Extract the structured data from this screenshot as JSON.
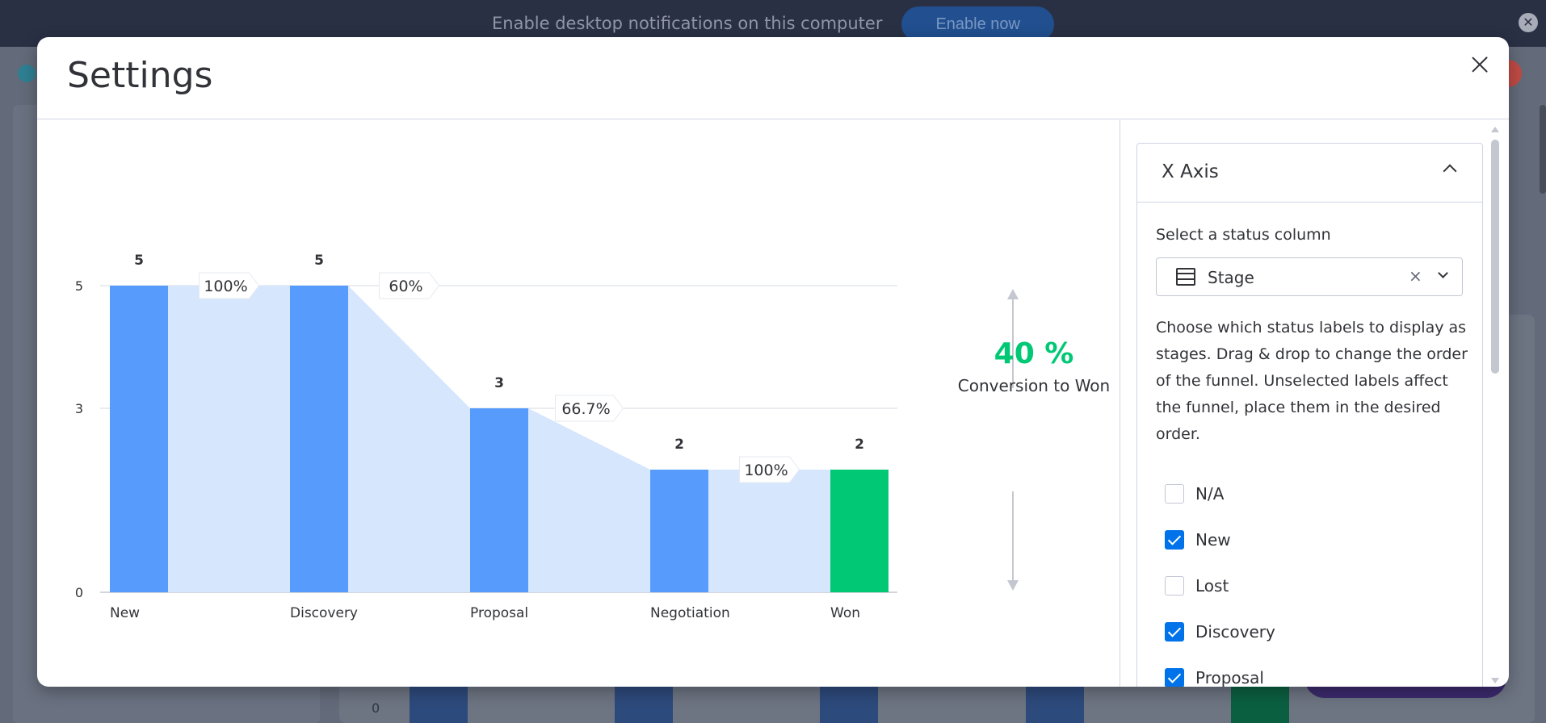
{
  "notification": {
    "text": "Enable desktop notifications on this computer",
    "button": "Enable now",
    "close": "✕"
  },
  "background": {
    "axis_zero": "0"
  },
  "modal": {
    "title": "Settings",
    "conversion": {
      "value": "40 %",
      "label": "Conversion to Won"
    }
  },
  "settings_panel": {
    "section_title": "X Axis",
    "status_field_label": "Select a status column",
    "status_select_value": "Stage",
    "clear_symbol": "×",
    "description": "Choose which status labels to display as stages. Drag & drop to change the order of the funnel. Unselected labels affect the funnel, place them in the desired order.",
    "labels": [
      {
        "label": "N/A",
        "checked": false
      },
      {
        "label": "New",
        "checked": true
      },
      {
        "label": "Lost",
        "checked": false
      },
      {
        "label": "Discovery",
        "checked": true
      },
      {
        "label": "Proposal",
        "checked": true
      }
    ]
  },
  "chart_data": {
    "type": "bar",
    "categories": [
      "New",
      "Discovery",
      "Proposal",
      "Negotiation",
      "Won"
    ],
    "values": [
      5,
      5,
      3,
      2,
      2
    ],
    "data_labels": [
      "5",
      "5",
      "3",
      "2",
      "2"
    ],
    "conversion_rates": [
      "100%",
      "60%",
      "66.7%",
      "100%"
    ],
    "y_ticks": [
      0,
      3,
      5
    ],
    "ylim": [
      0,
      5
    ],
    "grid": true,
    "colors": {
      "bar": "#579bfc",
      "final_bar": "#00c875",
      "funnel_fill": "#d6e6fd",
      "grid": "#c5c7d0"
    }
  },
  "colors": {
    "accent": "#0073ea",
    "success": "#00c875",
    "text": "#323338"
  }
}
